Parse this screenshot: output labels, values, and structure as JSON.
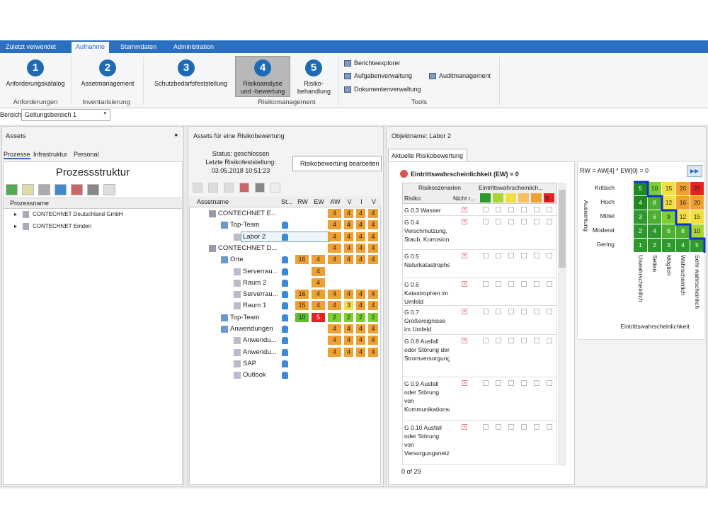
{
  "tabs": [
    "Zuletzt verwendet",
    "Aufnahme",
    "Stammdaten",
    "Administration"
  ],
  "ribbon": {
    "groups": [
      {
        "label": "Anforderungen",
        "buttons": [
          {
            "number": "1",
            "label": "Anforderungskatalog"
          }
        ]
      },
      {
        "label": "Inventarisierung",
        "buttons": [
          {
            "number": "2",
            "label": "Assetmanagement"
          }
        ]
      },
      {
        "label": "Risikomanagement",
        "buttons": [
          {
            "number": "3",
            "label": "Schutzbedarfsfeststellung"
          },
          {
            "number": "4",
            "label": "Risikoanalyse und -bewertung"
          },
          {
            "number": "5",
            "label": "Risiko-behandlung"
          }
        ]
      },
      {
        "label": "Tools",
        "buttons": []
      }
    ],
    "tools": [
      "Berichteexplorer",
      "Aufgabenverwaltung",
      "Dokumentenverwaltung",
      "Auditmanagement"
    ]
  },
  "scope": {
    "label": "Bereich:",
    "value": "Geltungsbereich 1"
  },
  "left_panel": {
    "title": "Assets",
    "tabs": [
      "Prozesse",
      "Infrastruktur",
      "Personal"
    ],
    "heading": "Prozessstruktur",
    "column": "Prozessname",
    "rows": [
      "CONTECHNET Deutschland GmbH",
      "CONTECHNET Emden"
    ]
  },
  "middle_panel": {
    "title": "Assets für eine Risikobewertung",
    "status": [
      "Status: geschlossen",
      "Letzte Risikofeststellung:",
      "03.05.2018 10:51:23"
    ],
    "button": "Risikobewertung bearbeiten",
    "columns": [
      "Assetname",
      "St...",
      "RW",
      "EW",
      "AW",
      "V",
      "I",
      "V"
    ],
    "rows": [
      {
        "name": "CONTECHNET E...",
        "level": 0,
        "cells": [
          null,
          null,
          4,
          4,
          4,
          4
        ],
        "colors": [
          null,
          null,
          "#f0a030",
          "#f0a030",
          "#f0a030",
          "#f0a030"
        ]
      },
      {
        "name": "Top-Team",
        "level": 1,
        "cells": [
          null,
          null,
          4,
          4,
          4,
          4
        ],
        "colors": [
          null,
          null,
          "#f0a030",
          "#f0a030",
          "#f0a030",
          "#f0a030"
        ]
      },
      {
        "name": "Labor 2",
        "level": 2,
        "cells": [
          null,
          null,
          4,
          4,
          4,
          4
        ],
        "colors": [
          null,
          null,
          "#f0a030",
          "#f0a030",
          "#f0a030",
          "#f0a030"
        ]
      },
      {
        "name": "CONTECHNET D...",
        "level": 0,
        "cells": [
          null,
          null,
          4,
          4,
          4,
          4
        ],
        "colors": [
          null,
          null,
          "#f0a030",
          "#f0a030",
          "#f0a030",
          "#f0a030"
        ]
      },
      {
        "name": "Orte",
        "level": 1,
        "cells": [
          16,
          4,
          4,
          4,
          4,
          4
        ],
        "colors": [
          "#f0a030",
          "#f0a030",
          "#f0a030",
          "#f0a030",
          "#f0a030",
          "#f0a030"
        ]
      },
      {
        "name": "Serverrau...",
        "level": 2,
        "cells": [
          null,
          4,
          null,
          null,
          null,
          null
        ],
        "colors": [
          null,
          "#f0a030",
          null,
          null,
          null,
          null
        ]
      },
      {
        "name": "Raum 2",
        "level": 2,
        "cells": [
          null,
          4,
          null,
          null,
          null,
          null
        ],
        "colors": [
          null,
          "#f0a030",
          null,
          null,
          null,
          null
        ]
      },
      {
        "name": "Serverrau...",
        "level": 2,
        "cells": [
          16,
          4,
          4,
          4,
          4,
          4
        ],
        "colors": [
          "#f0a030",
          "#f0a030",
          "#f0a030",
          "#f0a030",
          "#f0a030",
          "#f0a030"
        ]
      },
      {
        "name": "Raum 1",
        "level": 2,
        "cells": [
          15,
          4,
          4,
          3,
          4,
          4
        ],
        "colors": [
          "#f0a030",
          "#f0a030",
          "#f0a030",
          "#f2e040",
          "#f0a030",
          "#f0a030"
        ]
      },
      {
        "name": "Top-Team",
        "level": 1,
        "cells": [
          10,
          5,
          2,
          2,
          2,
          2
        ],
        "colors": [
          "#5cc030",
          "#e82020",
          "#7cd030",
          "#7cd030",
          "#7cd030",
          "#7cd030"
        ]
      },
      {
        "name": "Anwendungen",
        "level": 1,
        "cells": [
          null,
          null,
          4,
          4,
          4,
          4
        ],
        "colors": [
          null,
          null,
          "#f0a030",
          "#f0a030",
          "#f0a030",
          "#f0a030"
        ]
      },
      {
        "name": "Anwendu...",
        "level": 2,
        "cells": [
          null,
          null,
          4,
          4,
          4,
          4
        ],
        "colors": [
          null,
          null,
          "#f0a030",
          "#f0a030",
          "#f0a030",
          "#f0a030"
        ]
      },
      {
        "name": "Anwendu...",
        "level": 2,
        "cells": [
          null,
          null,
          4,
          4,
          4,
          4
        ],
        "colors": [
          null,
          null,
          "#f0a030",
          "#f0a030",
          "#f0a030",
          "#f0a030"
        ]
      },
      {
        "name": "SAP",
        "level": 2,
        "cells": [
          null,
          null,
          null,
          null,
          null,
          null
        ],
        "colors": [
          null,
          null,
          null,
          null,
          null,
          null
        ]
      },
      {
        "name": "Outlook",
        "level": 2,
        "cells": [
          null,
          null,
          null,
          null,
          null,
          null
        ],
        "colors": [
          null,
          null,
          null,
          null,
          null,
          null
        ]
      }
    ]
  },
  "right_panel": {
    "title": "Objektname: Labor 2",
    "tab": "Aktuelle Risikobewertung",
    "header": "Eintrittswahrscheinlichkeit (EW) = 0",
    "group_headers": [
      "Risikoszenarien",
      "Eintrittswahrscheinlich..."
    ],
    "columns": [
      "Risiko",
      "Nicht r...",
      "B..."
    ],
    "rows": [
      "G 0.3 Wasser",
      "G 0.4 Verschmutzung, Staub, Korrosion",
      "G 0.5 Naturkatastrophen",
      "G 0.6 Katastrophen im Umfeld",
      "G 0.7 Großereignisse im Umfeld",
      "G 0.8 Ausfall oder Störung der Stromversorgung",
      "G 0.9 Ausfall oder Störung von Kommunikationsnetzen",
      "G 0.10 Ausfall oder Störung von Versorgungsnetzen"
    ],
    "footer": "0 of 29"
  },
  "matrix": {
    "formula": "RW = AW[4] * EW[0] = 0",
    "y_title": "Auswirkung",
    "x_title": "Eintrittswahrscheinlichkeit",
    "row_labels": [
      "Kritisch",
      "Hoch",
      "Mittel",
      "Moderat",
      "Gering"
    ],
    "col_labels": [
      "Unwahrscheinlich",
      "Selten",
      "Möglich",
      "Wahrscheinlich",
      "Sehr wahrscheinlich"
    ],
    "values": [
      [
        5,
        10,
        15,
        20,
        25
      ],
      [
        4,
        8,
        12,
        16,
        20
      ],
      [
        3,
        6,
        9,
        12,
        15
      ],
      [
        2,
        4,
        6,
        8,
        10
      ],
      [
        1,
        2,
        3,
        4,
        5
      ]
    ],
    "colors": [
      [
        "#1e8a1e",
        "#7cd030",
        "#f2e040",
        "#f0a030",
        "#e82020"
      ],
      [
        "#1e8a1e",
        "#4caf30",
        "#f2e040",
        "#f0a030",
        "#f0a030"
      ],
      [
        "#2e9a2e",
        "#4caf30",
        "#7cd030",
        "#f2e040",
        "#f2e040"
      ],
      [
        "#2e9a2e",
        "#2e9a2e",
        "#4caf30",
        "#4caf30",
        "#a8d830"
      ],
      [
        "#2e9a2e",
        "#2e9a2e",
        "#2e9a2e",
        "#2e9a2e",
        "#2e9a2e"
      ]
    ]
  }
}
